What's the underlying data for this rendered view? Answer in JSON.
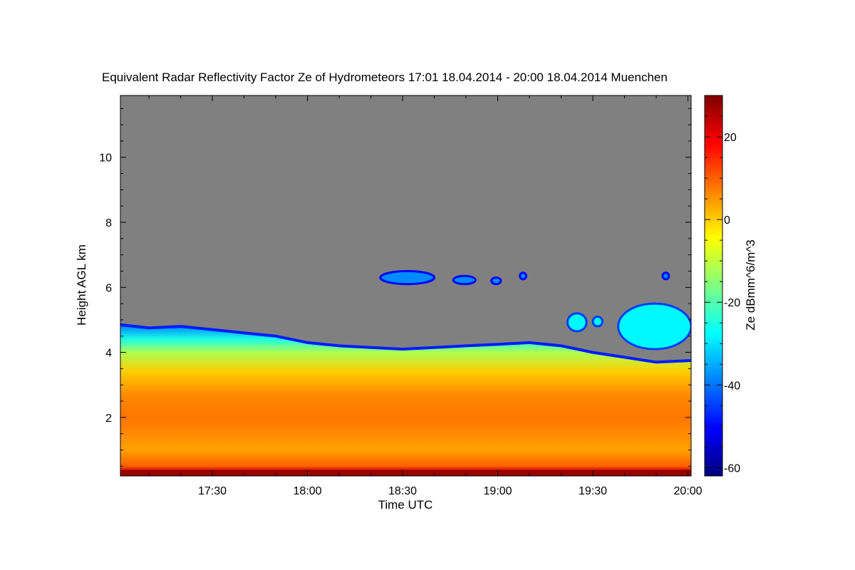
{
  "chart_data": {
    "type": "heatmap",
    "title": "Equivalent Radar Reflectivity Factor Ze of Hydrometeors   17:01 18.04.2014 - 20:00 18.04.2014 Muenchen",
    "xlabel": "Time UTC",
    "ylabel": "Height AGL km",
    "colorbar_label": "Ze dBmm^6/m^3",
    "x_ticks": [
      {
        "label": "17:30",
        "min": 30
      },
      {
        "label": "18:00",
        "min": 60
      },
      {
        "label": "18:30",
        "min": 90
      },
      {
        "label": "19:00",
        "min": 120
      },
      {
        "label": "19:30",
        "min": 150
      },
      {
        "label": "20:00",
        "min": 180
      }
    ],
    "y_ticks": [
      {
        "label": "2",
        "value": 2
      },
      {
        "label": "4",
        "value": 4
      },
      {
        "label": "6",
        "value": 6
      },
      {
        "label": "8",
        "value": 8
      },
      {
        "label": "10",
        "value": 10
      }
    ],
    "colorbar_ticks": [
      {
        "label": "20",
        "value": 20
      },
      {
        "label": "0",
        "value": 0
      },
      {
        "label": "-20",
        "value": -20
      },
      {
        "label": "-40",
        "value": -40
      },
      {
        "label": "-60",
        "value": -60
      }
    ],
    "xlim_min": [
      1,
      181
    ],
    "ylim_km": [
      0.2,
      11.9
    ],
    "zlim_dbz": [
      -62,
      30
    ],
    "colormap": [
      "#00007f",
      "#0000ff",
      "#0080ff",
      "#00ffff",
      "#80ff80",
      "#ffff00",
      "#ff8000",
      "#ff0000",
      "#7f0000"
    ],
    "no_data_color": "#808080",
    "cloud_top_km": [
      [
        1,
        4.85
      ],
      [
        10,
        4.75
      ],
      [
        20,
        4.8
      ],
      [
        30,
        4.7
      ],
      [
        40,
        4.6
      ],
      [
        45,
        4.55
      ],
      [
        50,
        4.5
      ],
      [
        55,
        4.4
      ],
      [
        60,
        4.3
      ],
      [
        70,
        4.2
      ],
      [
        80,
        4.15
      ],
      [
        90,
        4.1
      ],
      [
        100,
        4.15
      ],
      [
        110,
        4.2
      ],
      [
        120,
        4.25
      ],
      [
        130,
        4.3
      ],
      [
        140,
        4.2
      ],
      [
        150,
        4.0
      ],
      [
        160,
        3.85
      ],
      [
        170,
        3.7
      ],
      [
        181,
        3.75
      ]
    ],
    "upper_cells": [
      {
        "t0": 83,
        "t1": 100,
        "h0": 6.1,
        "h1": 6.5
      },
      {
        "t0": 106,
        "t1": 113,
        "h0": 6.1,
        "h1": 6.35
      },
      {
        "t0": 118,
        "t1": 121,
        "h0": 6.1,
        "h1": 6.3
      },
      {
        "t0": 127,
        "t1": 129,
        "h0": 6.25,
        "h1": 6.45
      },
      {
        "t0": 172,
        "t1": 174,
        "h0": 6.25,
        "h1": 6.45
      }
    ],
    "mid_cells": [
      {
        "t0": 142,
        "t1": 148,
        "h0": 4.65,
        "h1": 5.2
      },
      {
        "t0": 150,
        "t1": 153,
        "h0": 4.8,
        "h1": 5.1
      },
      {
        "t0": 158,
        "t1": 181,
        "h0": 4.1,
        "h1": 5.5
      }
    ],
    "profile": [
      {
        "h": 0.2,
        "z": 28
      },
      {
        "h": 0.35,
        "z": 24
      },
      {
        "h": 0.5,
        "z": 10
      },
      {
        "h": 1.0,
        "z": 4
      },
      {
        "h": 1.5,
        "z": 6
      },
      {
        "h": 2.0,
        "z": 8
      },
      {
        "h": 2.7,
        "z": 6
      },
      {
        "h": 3.4,
        "z": 0
      },
      {
        "h": 4.0,
        "z": -12
      },
      {
        "h": 4.4,
        "z": -25
      },
      {
        "h": 4.8,
        "z": -38
      }
    ]
  }
}
